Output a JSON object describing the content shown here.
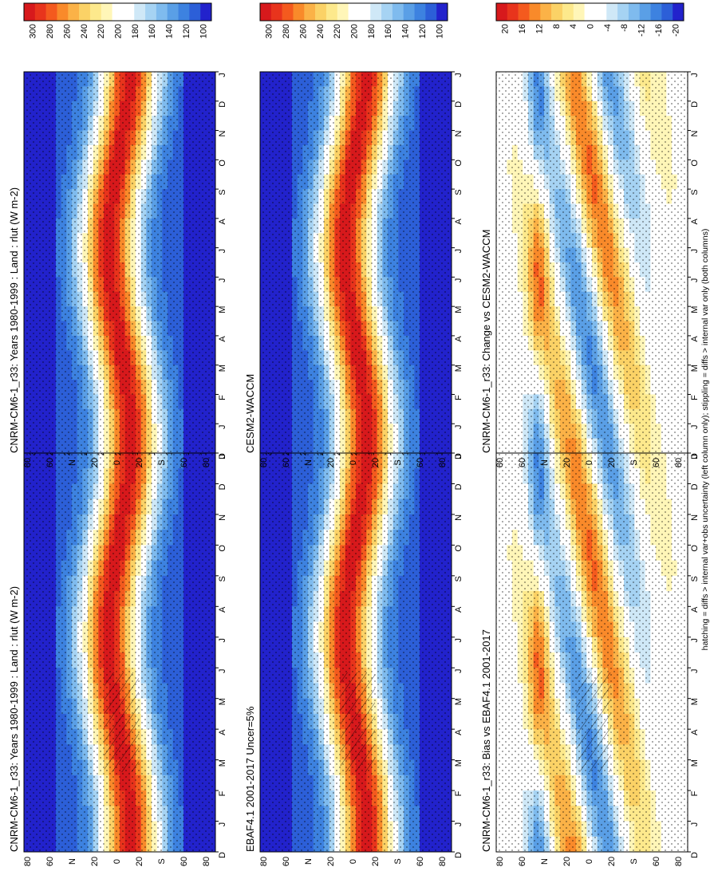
{
  "figure": {
    "footnote": "hatching = diffs > internal var+obs uncertainty (left column only); stippling = diffs > internal var only (both columns)"
  },
  "colors": {
    "abs_scale": [
      "#d7191c",
      "#e8341c",
      "#f45a1e",
      "#f98a2a",
      "#fbb247",
      "#fbd266",
      "#fde98c",
      "#fff6b8",
      "#ffffff",
      "#ffffff",
      "#cfe8f7",
      "#a6d3f3",
      "#7fbbee",
      "#5a9fe6",
      "#3d82e0",
      "#2c5fd8",
      "#2222cc"
    ],
    "diff_scale": [
      "#d7191c",
      "#e8341c",
      "#f45a1e",
      "#f98a2a",
      "#fbb247",
      "#fbd266",
      "#fde98c",
      "#fff6b8",
      "#ffffff",
      "#ffffff",
      "#cfe8f7",
      "#a6d3f3",
      "#7fbbee",
      "#5a9fe6",
      "#3d82e0",
      "#2c5fd8",
      "#2222cc"
    ]
  },
  "chart_data": [
    {
      "type": "heatmap",
      "panel": "top-left",
      "title": "CNRM-CM6-1_r33: Years 1980-1999 : Land : rlut (W m-2)",
      "x": [
        "D",
        "J",
        "F",
        "M",
        "A",
        "M",
        "J",
        "J",
        "A",
        "S",
        "O",
        "N",
        "D",
        "J"
      ],
      "y": [
        "80",
        "60",
        "N",
        "20",
        "0",
        "20",
        "S",
        "60",
        "80"
      ],
      "colorbar": {
        "ticks": [
          "300",
          "280",
          "260",
          "240",
          "220",
          "200",
          "180",
          "160",
          "140",
          "120",
          "100"
        ],
        "range": [
          90,
          310
        ]
      },
      "stippling": true,
      "hatching": true
    },
    {
      "type": "heatmap",
      "panel": "top-right",
      "title": "CNRM-CM6-1_r33: Years 1980-1999 : Land : rlut (W m-2)",
      "x": [
        "D",
        "J",
        "F",
        "M",
        "A",
        "M",
        "J",
        "J",
        "A",
        "S",
        "O",
        "N",
        "D",
        "J"
      ],
      "y": [
        "80",
        "60",
        "N",
        "20",
        "0",
        "20",
        "S",
        "60",
        "80"
      ],
      "colorbar": {
        "ticks": [
          "300",
          "280",
          "260",
          "240",
          "220",
          "200",
          "180",
          "160",
          "140",
          "120",
          "100"
        ],
        "range": [
          90,
          310
        ]
      },
      "stippling": true,
      "hatching": false
    },
    {
      "type": "heatmap",
      "panel": "middle-left",
      "title": "EBAF4.1 2001-2017 Uncer=5%",
      "x": [
        "D",
        "J",
        "F",
        "M",
        "A",
        "M",
        "J",
        "J",
        "A",
        "S",
        "O",
        "N",
        "D",
        "J"
      ],
      "y": [
        "80",
        "60",
        "N",
        "20",
        "0",
        "20",
        "S",
        "60",
        "80"
      ],
      "colorbar": {
        "ticks": [
          "300",
          "280",
          "260",
          "240",
          "220",
          "200",
          "180",
          "160",
          "140",
          "120",
          "100"
        ],
        "range": [
          90,
          310
        ]
      },
      "stippling": true,
      "hatching": true
    },
    {
      "type": "heatmap",
      "panel": "middle-right",
      "title": "CESM2-WACCM",
      "x": [
        "D",
        "J",
        "F",
        "M",
        "A",
        "M",
        "J",
        "J",
        "A",
        "S",
        "O",
        "N",
        "D",
        "J"
      ],
      "y": [
        "80",
        "60",
        "N",
        "20",
        "0",
        "20",
        "S",
        "60",
        "80"
      ],
      "colorbar": {
        "ticks": [
          "300",
          "280",
          "260",
          "240",
          "220",
          "200",
          "180",
          "160",
          "140",
          "120",
          "100"
        ],
        "range": [
          90,
          310
        ]
      },
      "stippling": true,
      "hatching": false
    },
    {
      "type": "heatmap",
      "panel": "bottom-left",
      "title": "CNRM-CM6-1_r33: Bias vs EBAF4.1 2001-2017",
      "x": [
        "D",
        "J",
        "F",
        "M",
        "A",
        "M",
        "J",
        "J",
        "A",
        "S",
        "O",
        "N",
        "D",
        "J"
      ],
      "y": [
        "80",
        "60",
        "N",
        "20",
        "0",
        "20",
        "S",
        "60",
        "80"
      ],
      "colorbar": {
        "ticks": [
          "20",
          "16",
          "12",
          "8",
          "4",
          "0",
          "-4",
          "-8",
          "-12",
          "-16",
          "-20"
        ],
        "range": [
          -22,
          22
        ]
      },
      "stippling": true,
      "hatching": true
    },
    {
      "type": "heatmap",
      "panel": "bottom-right",
      "title": "CNRM-CM6-1_r33: Change vs CESM2-WACCM",
      "x": [
        "D",
        "J",
        "F",
        "M",
        "A",
        "M",
        "J",
        "J",
        "A",
        "S",
        "O",
        "N",
        "D",
        "J"
      ],
      "y": [
        "80",
        "60",
        "N",
        "20",
        "0",
        "20",
        "S",
        "60",
        "80"
      ],
      "colorbar": {
        "ticks": [
          "20",
          "16",
          "12",
          "8",
          "4",
          "0",
          "-4",
          "-8",
          "-12",
          "-16",
          "-20"
        ],
        "range": [
          -22,
          22
        ]
      },
      "stippling": true,
      "hatching": false
    }
  ]
}
